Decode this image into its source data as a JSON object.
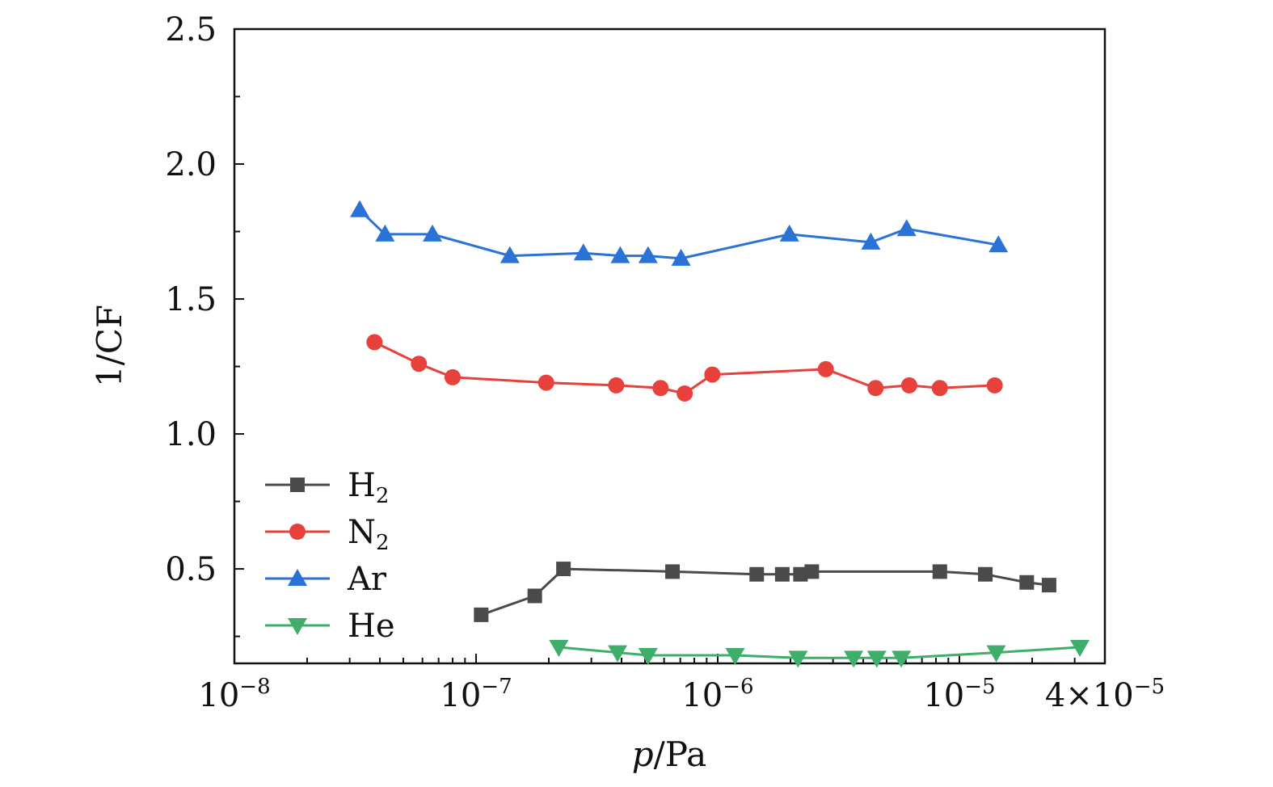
{
  "chart_data": {
    "type": "line",
    "xscale": "log",
    "xlabel_italic": "p",
    "xlabel_rest": "/Pa",
    "ylabel": "1/CF",
    "xlim": [
      1e-08,
      4e-05
    ],
    "ylim": [
      0.15,
      2.5
    ],
    "y_ticks": [
      0.5,
      1.0,
      1.5,
      2.0,
      2.5
    ],
    "y_tick_labels": [
      "0.5",
      "1.0",
      "1.5",
      "2.0",
      "2.5"
    ],
    "x_ticks": [
      {
        "value": 1e-08,
        "base": "10",
        "exp": "−8"
      },
      {
        "value": 1e-07,
        "base": "10",
        "exp": "−7"
      },
      {
        "value": 1e-06,
        "base": "10",
        "exp": "−6"
      },
      {
        "value": 1e-05,
        "base": "10",
        "exp": "−5"
      },
      {
        "value": 4e-05,
        "base": "4×10",
        "exp": "−5"
      }
    ],
    "legend_position": "bottom-left",
    "series": [
      {
        "name": "H",
        "sub": "2",
        "marker": "square",
        "color": "#4a4a4a",
        "x": [
          1.05e-07,
          1.75e-07,
          2.3e-07,
          6.5e-07,
          1.45e-06,
          1.85e-06,
          2.2e-06,
          2.45e-06,
          8.3e-06,
          1.28e-05,
          1.9e-05,
          2.35e-05
        ],
        "y": [
          0.33,
          0.4,
          0.5,
          0.49,
          0.48,
          0.48,
          0.48,
          0.49,
          0.49,
          0.48,
          0.45,
          0.44
        ]
      },
      {
        "name": "N",
        "sub": "2",
        "marker": "circle",
        "color": "#e8413c",
        "x": [
          3.8e-08,
          5.8e-08,
          8e-08,
          1.95e-07,
          3.8e-07,
          5.8e-07,
          7.3e-07,
          9.5e-07,
          2.8e-06,
          4.5e-06,
          6.2e-06,
          8.3e-06,
          1.4e-05
        ],
        "y": [
          1.34,
          1.26,
          1.21,
          1.19,
          1.18,
          1.17,
          1.15,
          1.22,
          1.24,
          1.17,
          1.18,
          1.17,
          1.18
        ]
      },
      {
        "name": "Ar",
        "sub": "",
        "marker": "triangle-up",
        "color": "#2a72d5",
        "x": [
          3.3e-08,
          4.2e-08,
          6.6e-08,
          1.38e-07,
          2.78e-07,
          3.95e-07,
          5.15e-07,
          7.05e-07,
          1.98e-06,
          4.3e-06,
          6.05e-06,
          1.45e-05
        ],
        "y": [
          1.83,
          1.74,
          1.74,
          1.66,
          1.67,
          1.66,
          1.66,
          1.65,
          1.74,
          1.71,
          1.76,
          1.7
        ]
      },
      {
        "name": "He",
        "sub": "",
        "marker": "triangle-down",
        "color": "#3fae6b",
        "x": [
          2.2e-07,
          3.85e-07,
          5.15e-07,
          1.18e-06,
          2.15e-06,
          3.65e-06,
          4.55e-06,
          5.75e-06,
          1.42e-05,
          3.15e-05
        ],
        "y": [
          0.21,
          0.19,
          0.18,
          0.18,
          0.17,
          0.17,
          0.17,
          0.17,
          0.19,
          0.21
        ]
      }
    ]
  }
}
